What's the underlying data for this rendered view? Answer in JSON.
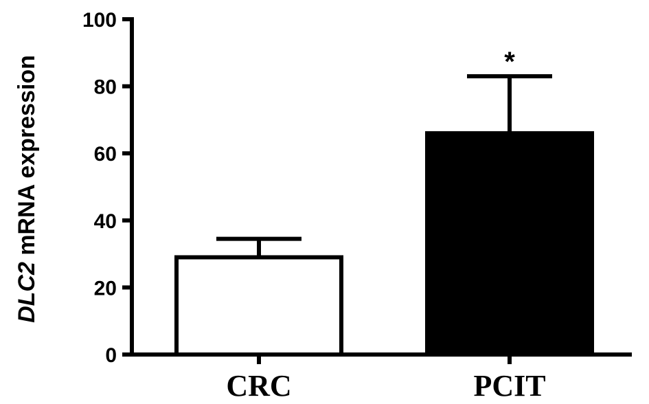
{
  "chart_data": {
    "type": "bar",
    "ylabel_italic": "DLC2",
    "ylabel_rest": " mRNA expression",
    "ylim": [
      0,
      100
    ],
    "yticks": [
      0,
      20,
      40,
      60,
      80,
      100
    ],
    "categories": [
      "CRC",
      "PCIT"
    ],
    "values": [
      29,
      66
    ],
    "errors": [
      5.5,
      17
    ],
    "bar_fills": [
      "#ffffff",
      "#000000"
    ],
    "annotations": [
      "",
      "*"
    ],
    "grid": false,
    "legend": "none"
  }
}
